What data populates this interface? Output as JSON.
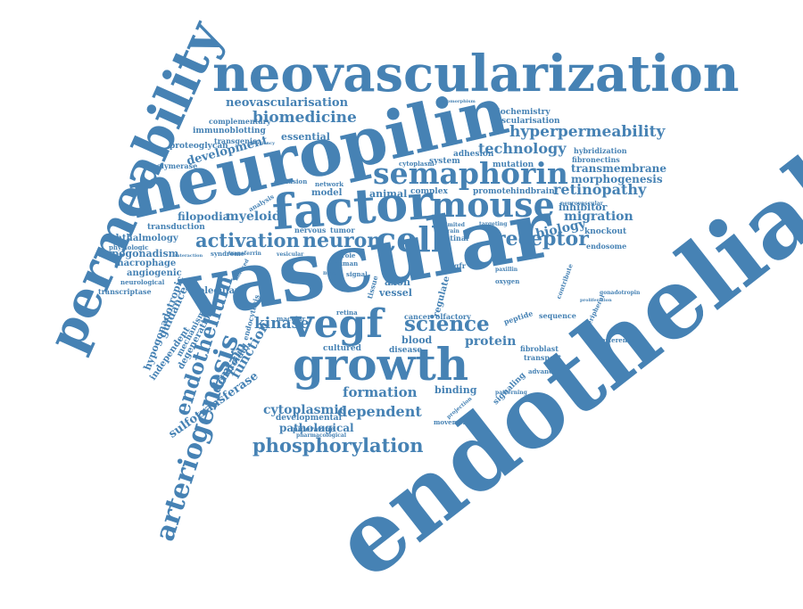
{
  "color": "#4682b4",
  "words": [
    {
      "text": "endothelial"
    },
    {
      "text": "vascular"
    },
    {
      "text": "neuropilin"
    },
    {
      "text": "neovascularization"
    },
    {
      "text": "permeability"
    },
    {
      "text": "factor"
    },
    {
      "text": "mouse"
    },
    {
      "text": "growth"
    },
    {
      "text": "semaphorin"
    },
    {
      "text": "cell"
    },
    {
      "text": "vegf"
    },
    {
      "text": "arteriogenesis"
    },
    {
      "text": "endothelium"
    },
    {
      "text": "neuron"
    },
    {
      "text": "activation"
    },
    {
      "text": "receptor"
    },
    {
      "text": "phosphorylation"
    },
    {
      "text": "hyperpermeability"
    },
    {
      "text": "biomedicine"
    },
    {
      "text": "neovascularisation"
    },
    {
      "text": "technology"
    },
    {
      "text": "retinopathy"
    },
    {
      "text": "science"
    },
    {
      "text": "dependent"
    },
    {
      "text": "protein"
    },
    {
      "text": "kinase"
    },
    {
      "text": "formation"
    },
    {
      "text": "cytoplasmic"
    },
    {
      "text": "migration"
    },
    {
      "text": "biology"
    },
    {
      "text": "transmembrane"
    },
    {
      "text": "morphogenesis"
    },
    {
      "text": "inhibitor"
    },
    {
      "text": "myeloid"
    },
    {
      "text": "filopodia"
    },
    {
      "text": "development"
    },
    {
      "text": "essential"
    },
    {
      "text": "pathological"
    },
    {
      "text": "binding"
    },
    {
      "text": "domain"
    },
    {
      "text": "function"
    },
    {
      "text": "sulfotransferase"
    },
    {
      "text": "guidance"
    },
    {
      "text": "hypogonadotropic"
    },
    {
      "text": "hypogonadism"
    },
    {
      "text": "macrophage"
    },
    {
      "text": "angiogenic"
    },
    {
      "text": "ophthalmology"
    },
    {
      "text": "transduction"
    },
    {
      "text": "molecular"
    },
    {
      "text": "system"
    },
    {
      "text": "animal"
    },
    {
      "text": "model"
    },
    {
      "text": "complex"
    },
    {
      "text": "promote"
    },
    {
      "text": "hindbrain"
    },
    {
      "text": "adhesion"
    },
    {
      "text": "mutation"
    },
    {
      "text": "cytoplasm"
    },
    {
      "text": "biochemistry"
    },
    {
      "text": "vascularisation"
    },
    {
      "text": "fibronectins"
    },
    {
      "text": "hybridization"
    },
    {
      "text": "knockout"
    },
    {
      "text": "endosome"
    },
    {
      "text": "neurovascular"
    },
    {
      "text": "axon"
    },
    {
      "text": "vessel"
    },
    {
      "text": "retinal"
    },
    {
      "text": "vegfr"
    },
    {
      "text": "tissue"
    },
    {
      "text": "regulate"
    },
    {
      "text": "blood"
    },
    {
      "text": "disease"
    },
    {
      "text": "cultured"
    },
    {
      "text": "fibroblast"
    },
    {
      "text": "transport"
    },
    {
      "text": "cancer"
    },
    {
      "text": "olfactory"
    },
    {
      "text": "sequence"
    },
    {
      "text": "peptide"
    },
    {
      "text": "signaling"
    },
    {
      "text": "developmental"
    },
    {
      "text": "piperazine"
    },
    {
      "text": "pharmacological"
    },
    {
      "text": "degeneration"
    },
    {
      "text": "mechanism"
    },
    {
      "text": "independent"
    },
    {
      "text": "choroidal"
    },
    {
      "text": "endocytosis"
    },
    {
      "text": "complementary"
    },
    {
      "text": "immunoblotting"
    },
    {
      "text": "transgenic"
    },
    {
      "text": "proteoglycan"
    },
    {
      "text": "polymerase"
    },
    {
      "text": "physiologic"
    },
    {
      "text": "syndrome"
    },
    {
      "text": "neurological"
    },
    {
      "text": "transcriptase"
    },
    {
      "text": "macular"
    },
    {
      "text": "retina"
    },
    {
      "text": "nervous"
    },
    {
      "text": "tumor"
    },
    {
      "text": "network"
    },
    {
      "text": "occlusion"
    },
    {
      "text": "human"
    },
    {
      "text": "signal"
    },
    {
      "text": "role"
    },
    {
      "text": "novel"
    },
    {
      "text": "gonadotropin"
    },
    {
      "text": "peripheral"
    },
    {
      "text": "interference"
    },
    {
      "text": "advanced"
    },
    {
      "text": "oxygen"
    },
    {
      "text": "paxillin"
    },
    {
      "text": "contribute"
    },
    {
      "text": "limited"
    },
    {
      "text": "brain"
    },
    {
      "text": "targeting"
    },
    {
      "text": "interaction"
    },
    {
      "text": "deficiency"
    },
    {
      "text": "analysis"
    },
    {
      "text": "transferrin"
    },
    {
      "text": "induced"
    },
    {
      "text": "vesicular"
    },
    {
      "text": "hypomorphism"
    },
    {
      "text": "patterning"
    },
    {
      "text": "movement"
    },
    {
      "text": "projection"
    },
    {
      "text": "proliferation"
    }
  ]
}
